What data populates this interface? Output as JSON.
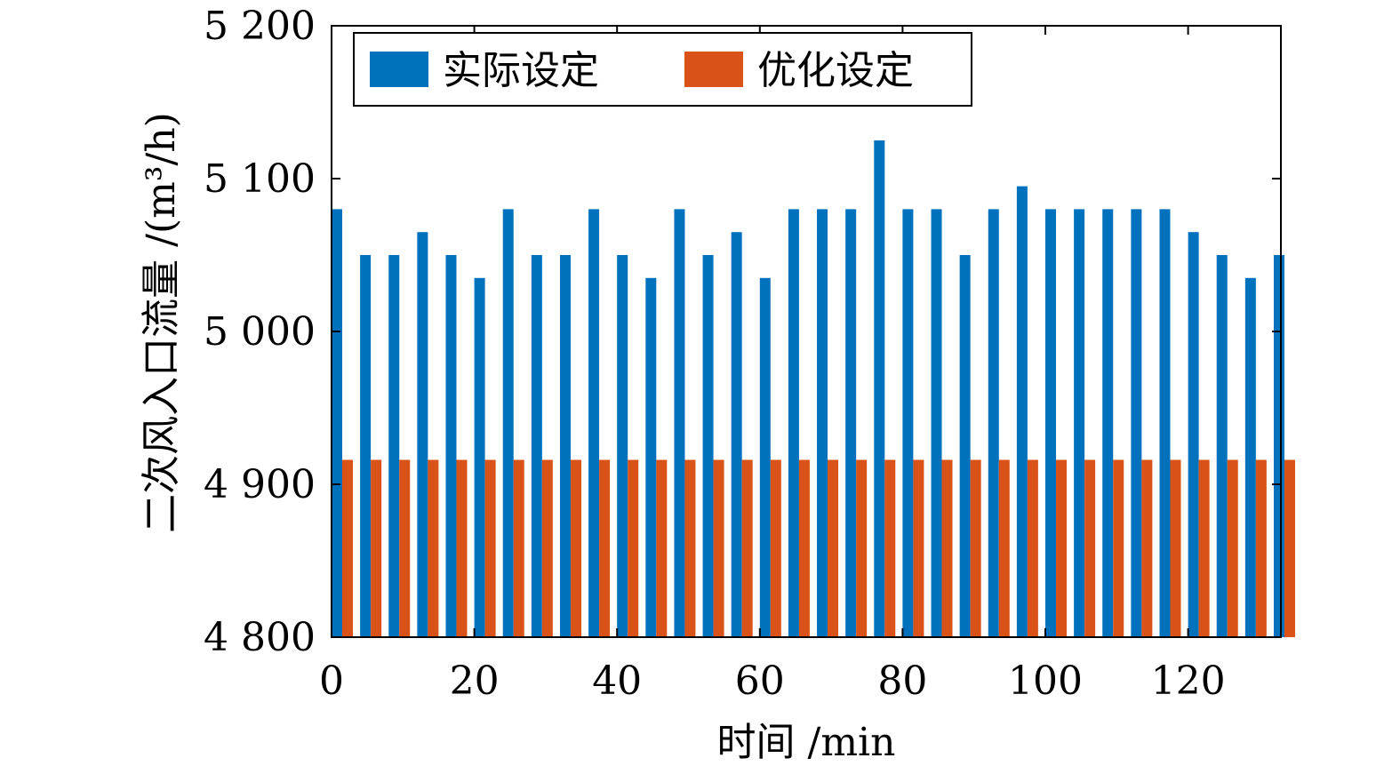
{
  "chart_data": {
    "type": "bar",
    "xlabel": "时间 /min",
    "ylabel": "二次风入口流量 /(m³/h)",
    "xlim": [
      0,
      133
    ],
    "ylim": [
      4800,
      5200
    ],
    "xticks": [
      0,
      20,
      40,
      60,
      80,
      100,
      120
    ],
    "xtick_labels": [
      "0",
      "20",
      "40",
      "60",
      "80",
      "100",
      "120"
    ],
    "yticks": [
      4800,
      4900,
      5000,
      5100,
      5200
    ],
    "ytick_labels": [
      "4 800",
      "4 900",
      "5 000",
      "5 100",
      "5 200"
    ],
    "x": [
      0,
      4,
      8,
      12,
      16,
      20,
      24,
      28,
      32,
      36,
      40,
      44,
      48,
      52,
      56,
      60,
      64,
      68,
      72,
      76,
      80,
      84,
      88,
      92,
      96,
      100,
      104,
      108,
      112,
      116,
      120,
      124,
      128,
      132
    ],
    "series": [
      {
        "name": "实际设定",
        "color": "#0072BD",
        "values": [
          5080,
          5050,
          5050,
          5065,
          5050,
          5035,
          5080,
          5050,
          5050,
          5080,
          5050,
          5035,
          5080,
          5050,
          5065,
          5035,
          5080,
          5080,
          5080,
          5125,
          5080,
          5080,
          5050,
          5080,
          5095,
          5080,
          5080,
          5080,
          5080,
          5080,
          5065,
          5050,
          5035,
          5050
        ]
      },
      {
        "name": "优化设定",
        "color": "#D95319",
        "values": [
          4916,
          4916,
          4916,
          4916,
          4916,
          4916,
          4916,
          4916,
          4916,
          4916,
          4916,
          4916,
          4916,
          4916,
          4916,
          4916,
          4916,
          4916,
          4916,
          4916,
          4916,
          4916,
          4916,
          4916,
          4916,
          4916,
          4916,
          4916,
          4916,
          4916,
          4916,
          4916,
          4916,
          4916
        ]
      }
    ],
    "grid": false,
    "legend_position": "top-left"
  }
}
